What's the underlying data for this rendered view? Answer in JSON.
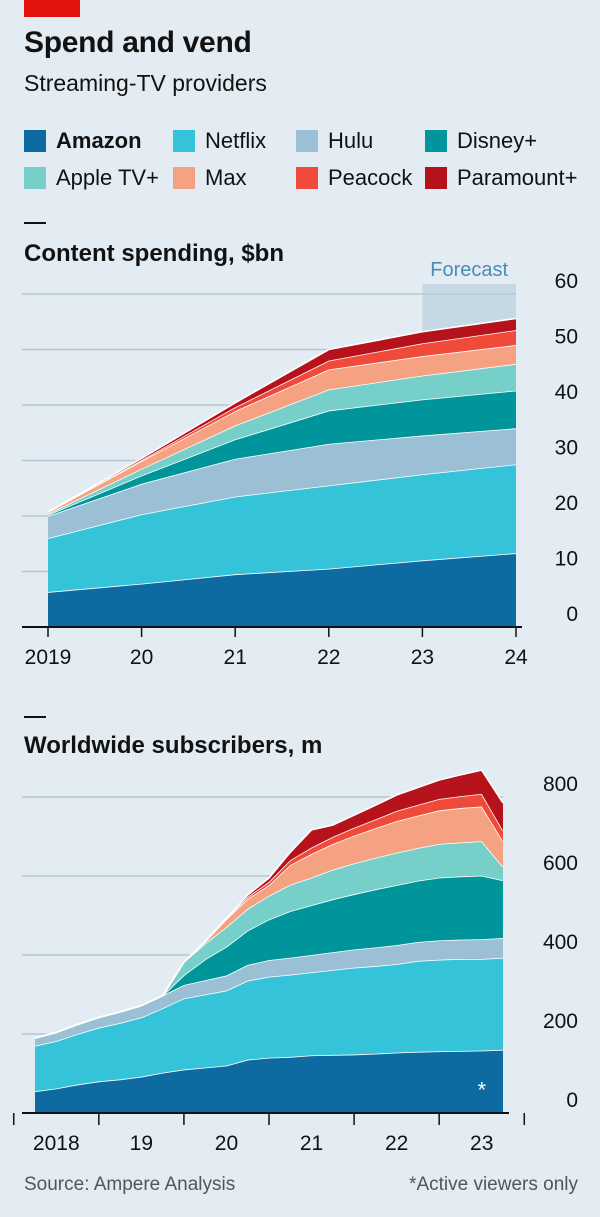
{
  "header": {
    "title": "Spend and vend",
    "subtitle": "Streaming-TV providers"
  },
  "legend": [
    {
      "label": "Amazon",
      "color": "#0d6ba1",
      "bold": true
    },
    {
      "label": "Netflix",
      "color": "#34c3d9"
    },
    {
      "label": "Hulu",
      "color": "#9bc0d6"
    },
    {
      "label": "Disney+",
      "color": "#00959a"
    },
    {
      "label": "Apple TV+",
      "color": "#76cfc9"
    },
    {
      "label": "Max",
      "color": "#f5a282"
    },
    {
      "label": "Peacock",
      "color": "#f04a3a"
    },
    {
      "label": "Paramount+",
      "color": "#b5121b"
    }
  ],
  "footer": {
    "source": "Source: Ampere Analysis",
    "note": "*Active viewers only"
  },
  "chart_data": [
    {
      "type": "area",
      "stacked": true,
      "title": "Content spending, $bn",
      "forecast_label": "Forecast",
      "forecast_range": [
        2023,
        2024
      ],
      "x": [
        2019,
        2020,
        2021,
        2022,
        2023,
        2024
      ],
      "x_tick_labels": [
        "2019",
        "20",
        "21",
        "22",
        "23",
        "24"
      ],
      "ylim": [
        0,
        60
      ],
      "y_ticks": [
        0,
        10,
        20,
        30,
        40,
        50,
        60
      ],
      "grid": true,
      "series": [
        {
          "name": "Amazon",
          "values": [
            6.3,
            7.8,
            9.5,
            10.5,
            12.0,
            13.3
          ]
        },
        {
          "name": "Netflix",
          "values": [
            9.7,
            12.5,
            14.0,
            15.0,
            15.5,
            16.0
          ]
        },
        {
          "name": "Hulu",
          "values": [
            4.0,
            5.5,
            6.8,
            7.5,
            7.0,
            6.5
          ]
        },
        {
          "name": "Disney+",
          "values": [
            0.2,
            1.5,
            3.5,
            6.0,
            6.5,
            6.8
          ]
        },
        {
          "name": "Apple TV+",
          "values": [
            0.2,
            1.2,
            2.5,
            3.8,
            4.3,
            4.8
          ]
        },
        {
          "name": "Max",
          "values": [
            0.3,
            1.4,
            2.6,
            3.6,
            3.5,
            3.4
          ]
        },
        {
          "name": "Peacock",
          "values": [
            0.0,
            0.2,
            0.7,
            1.6,
            2.3,
            2.7
          ]
        },
        {
          "name": "Paramount+",
          "values": [
            0.0,
            0.3,
            0.8,
            2.0,
            2.1,
            2.1
          ]
        }
      ]
    },
    {
      "type": "area",
      "stacked": true,
      "title": "Worldwide subscribers, m",
      "x": [
        2017.75,
        2018.0,
        2018.25,
        2018.5,
        2018.75,
        2019.0,
        2019.25,
        2019.5,
        2019.75,
        2020.0,
        2020.25,
        2020.5,
        2020.75,
        2021.0,
        2021.25,
        2021.5,
        2021.75,
        2022.0,
        2022.25,
        2022.5,
        2022.75,
        2023.0,
        2023.25
      ],
      "x_tick_labels": [
        "2018",
        "19",
        "20",
        "21",
        "22",
        "23"
      ],
      "x_tick_values": [
        2018,
        2019,
        2020,
        2021,
        2022,
        2023
      ],
      "ylim": [
        0,
        800
      ],
      "y_ticks": [
        0,
        200,
        400,
        600,
        800
      ],
      "grid": true,
      "annotation": "*",
      "annotation_point": {
        "series": "Amazon",
        "x": 2023.0,
        "y": 80
      },
      "series": [
        {
          "name": "Amazon",
          "values": [
            55,
            62,
            72,
            80,
            85,
            92,
            102,
            110,
            115,
            120,
            135,
            140,
            142,
            146,
            147,
            148,
            150,
            153,
            155,
            156,
            157,
            158,
            160
          ]
        },
        {
          "name": "Netflix",
          "values": [
            115,
            120,
            128,
            136,
            143,
            150,
            163,
            180,
            185,
            190,
            200,
            205,
            208,
            210,
            215,
            220,
            222,
            224,
            230,
            232,
            233,
            232,
            233
          ]
        },
        {
          "name": "Hulu",
          "values": [
            20,
            22,
            24,
            26,
            28,
            30,
            32,
            34,
            36,
            38,
            40,
            42,
            43,
            44,
            45,
            46,
            47,
            48,
            48,
            49,
            49,
            50,
            50
          ]
        },
        {
          "name": "Disney+",
          "values": [
            0,
            0,
            0,
            0,
            0,
            0,
            0,
            25,
            53,
            73,
            87,
            103,
            118,
            126,
            134,
            140,
            147,
            152,
            155,
            159,
            160,
            161,
            146
          ]
        },
        {
          "name": "Apple TV+",
          "values": [
            0,
            0,
            0,
            0,
            0,
            0,
            0,
            33,
            40,
            50,
            55,
            60,
            67,
            70,
            75,
            78,
            80,
            82,
            83,
            85,
            86,
            87,
            34
          ]
        },
        {
          "name": "Max",
          "values": [
            0,
            0,
            0,
            0,
            0,
            0,
            0,
            0,
            5,
            20,
            25,
            27,
            50,
            60,
            65,
            70,
            75,
            80,
            82,
            85,
            87,
            88,
            65
          ]
        },
        {
          "name": "Peacock",
          "values": [
            0,
            0,
            0,
            0,
            0,
            0,
            0,
            0,
            0,
            2,
            5,
            8,
            12,
            16,
            18,
            20,
            22,
            26,
            27,
            29,
            30,
            32,
            27
          ]
        },
        {
          "name": "Paramount+",
          "values": [
            0,
            0,
            0,
            0,
            0,
            0,
            0,
            0,
            0,
            0,
            5,
            10,
            20,
            45,
            30,
            32,
            36,
            40,
            44,
            48,
            54,
            60,
            70
          ]
        }
      ]
    }
  ]
}
